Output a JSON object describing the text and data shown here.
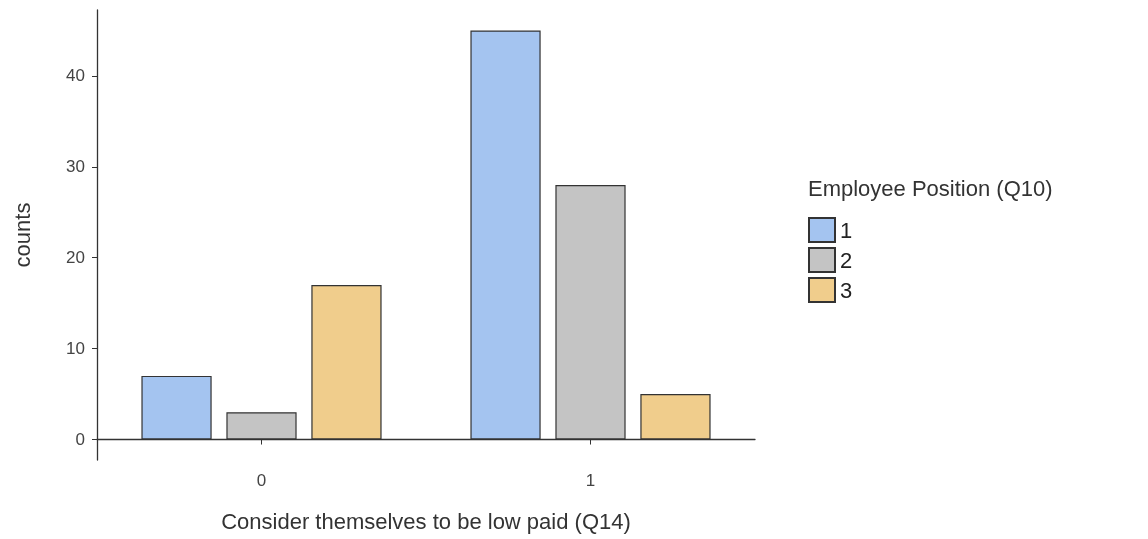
{
  "chart_data": {
    "type": "bar",
    "xlabel": "Consider themselves to be low paid (Q14)",
    "ylabel": "counts",
    "legend_title": "Employee Position (Q10)",
    "categories": [
      "0",
      "1"
    ],
    "series": [
      {
        "name": "1",
        "color": "#a4c4f0",
        "values": [
          7,
          45
        ]
      },
      {
        "name": "2",
        "color": "#c4c4c4",
        "values": [
          3,
          28
        ]
      },
      {
        "name": "3",
        "color": "#f0cd8c",
        "values": [
          17,
          5
        ]
      }
    ],
    "ylim": [
      -2.25,
      47.25
    ],
    "yticks": [
      0,
      10,
      20,
      30,
      40
    ],
    "grid": false,
    "legend": "right"
  }
}
